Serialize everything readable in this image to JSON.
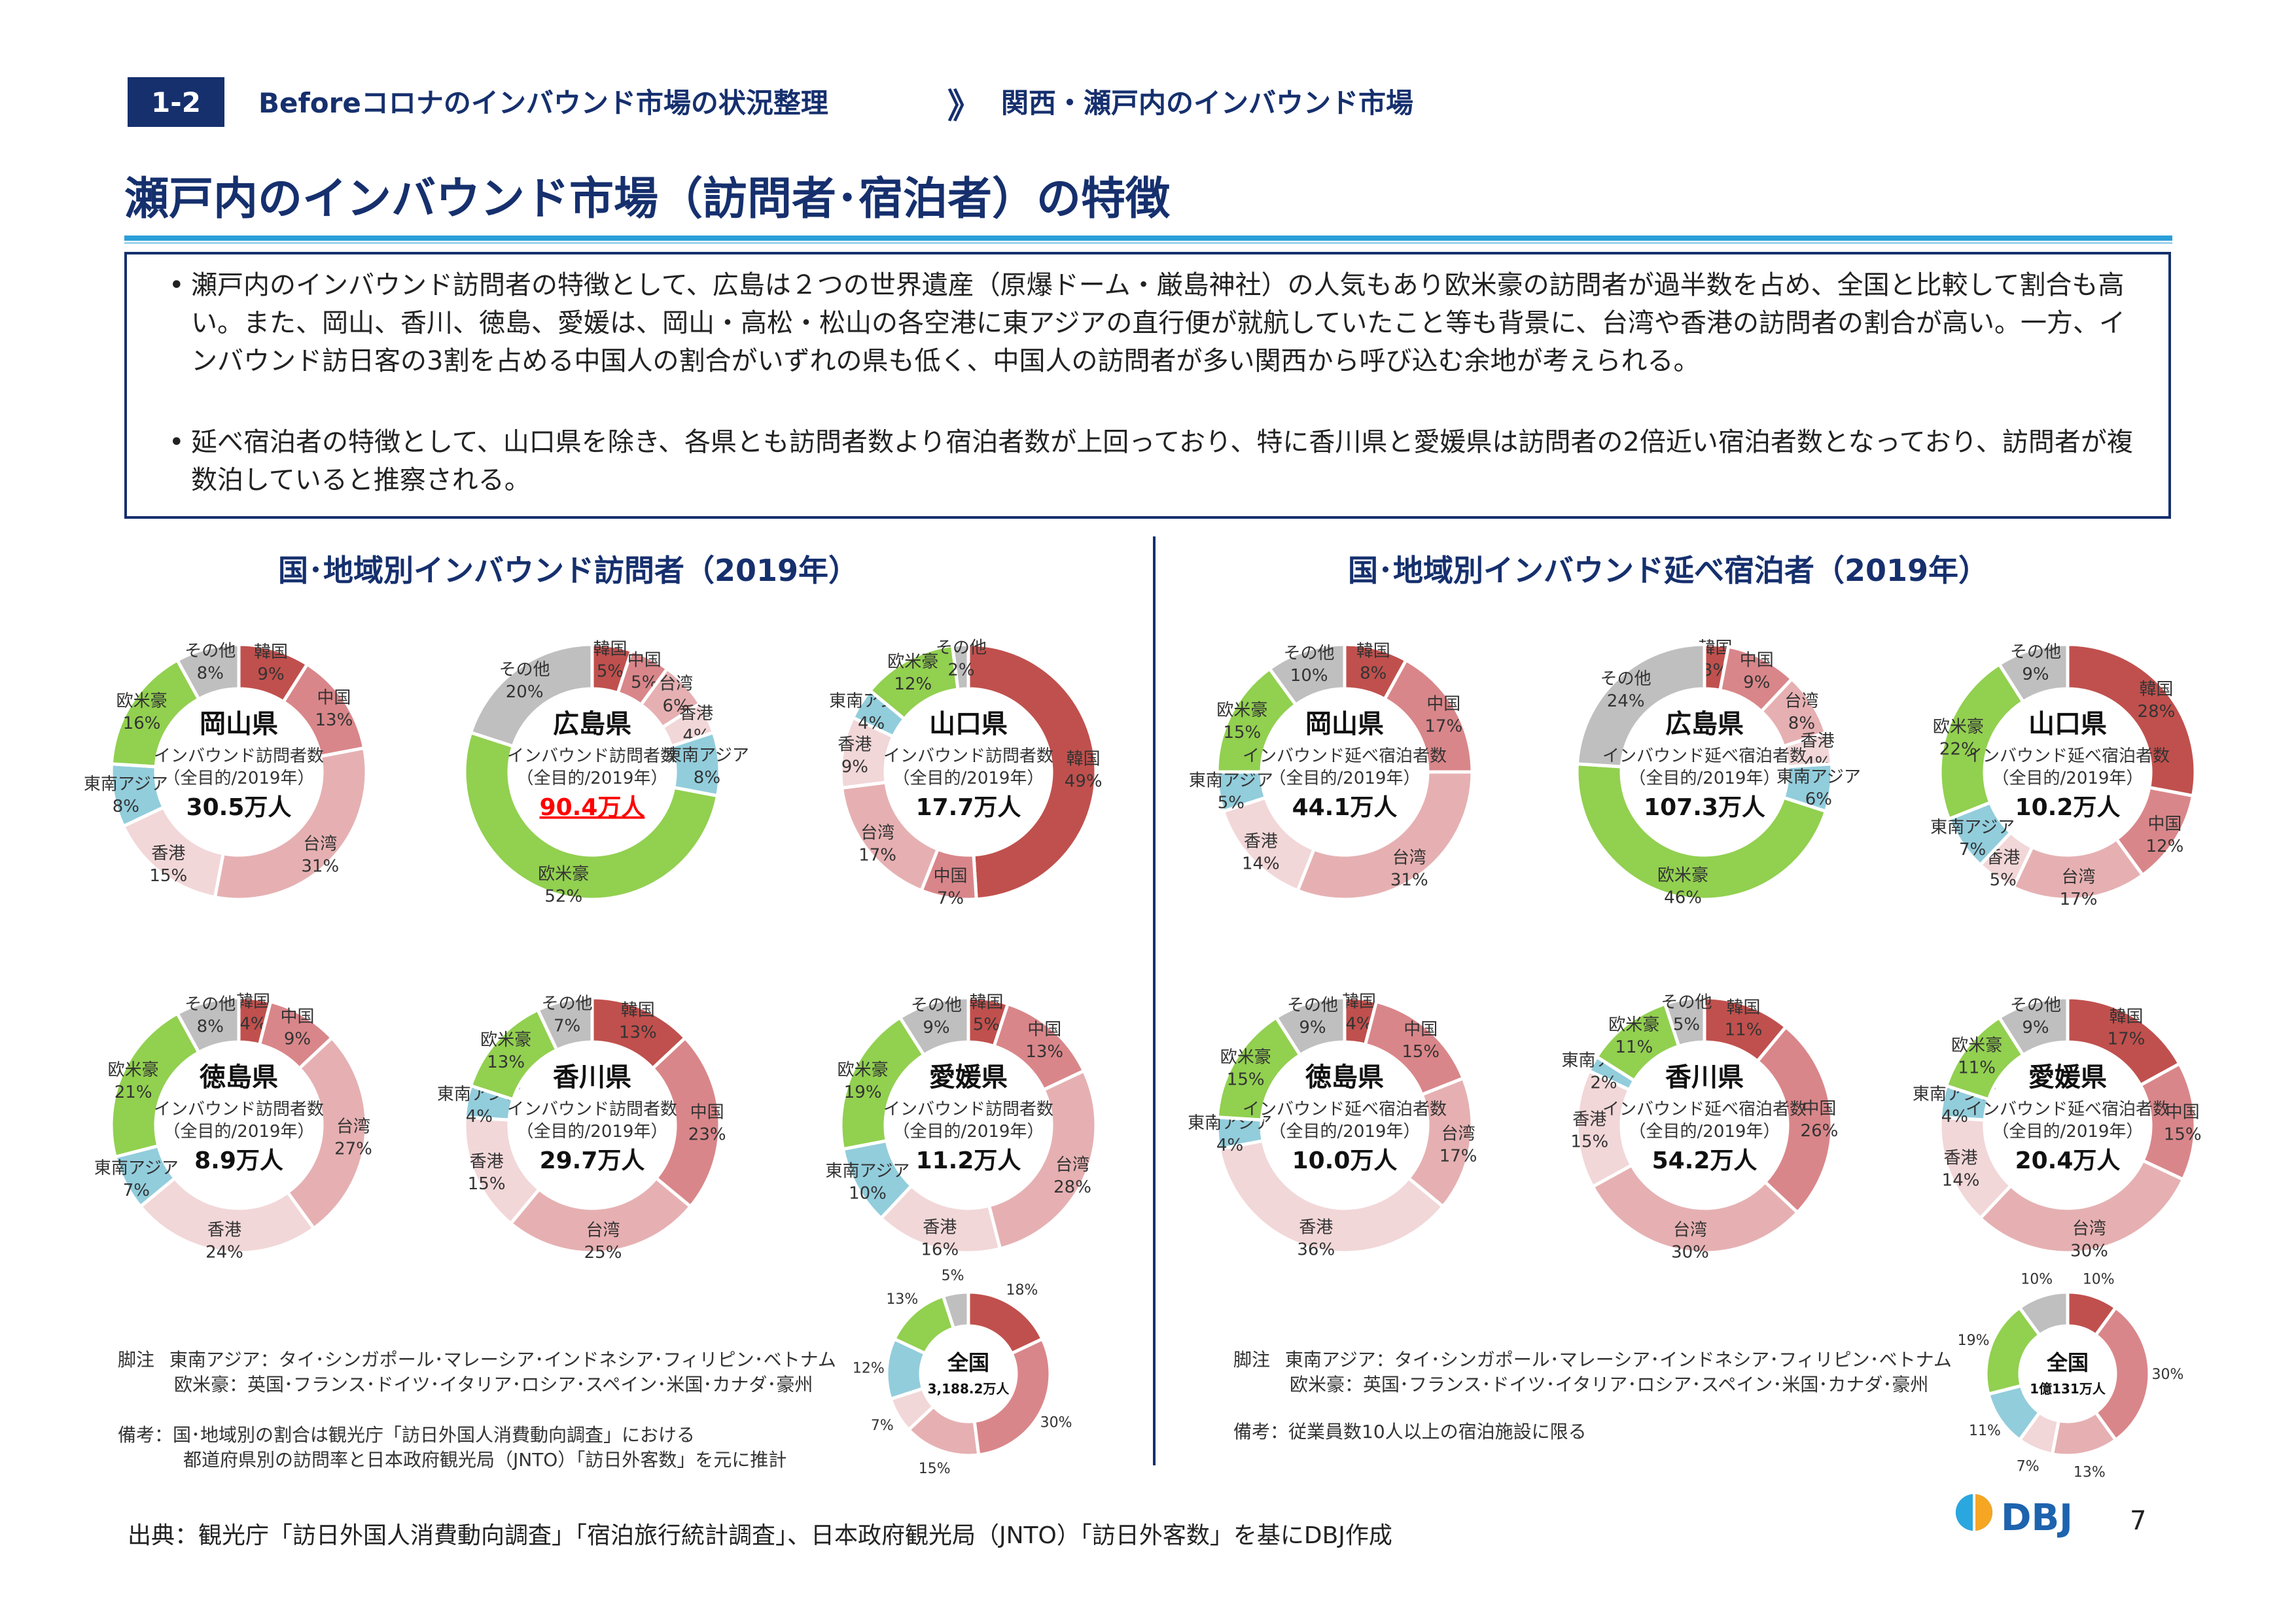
{
  "header": {
    "section_number": "1-2",
    "breadcrumb_main": "Beforeコロナのインバウンド市場の状況整理",
    "breadcrumb_arrow": "》",
    "breadcrumb_sub": "関西・瀬戸内のインバウンド市場"
  },
  "page_title": "瀬戸内のインバウンド市場（訪問者･宿泊者）の特徴",
  "summary": {
    "bullets": [
      "瀬戸内のインバウンド訪問者の特徴として、広島は２つの世界遺産（原爆ドーム・厳島神社）の人気もあり欧米豪の訪問者が過半数を占め、全国と比較して割合も高い。また、岡山、香川、徳島、愛媛は、岡山・高松・松山の各空港に東アジアの直行便が就航していたこと等も背景に、台湾や香港の訪問者の割合が高い。一方、インバウンド訪日客の3割を占める中国人の割合がいずれの県も低く、中国人の訪問者が多い関西から呼び込む余地が考えられる。",
      "延べ宿泊者の特徴として、山口県を除き、各県とも訪問者数より宿泊者数が上回っており、特に香川県と愛媛県は訪問者の2倍近い宿泊者数となっており、訪問者が複数泊していると推察される。"
    ],
    "bullet_symbol": "•"
  },
  "colors": {
    "韓国": "#c0504d",
    "中国": "#d9868a",
    "台湾": "#e6b0b2",
    "香港": "#f2d7d8",
    "東南アジア": "#92cddc",
    "欧米豪": "#92d050",
    "その他": "#bfbfbf",
    "highlight_red": "#ff0000"
  },
  "left_section": {
    "title": "国･地域別インバウンド訪問者（2019年）",
    "footnote_label": "脚注",
    "footnote_lines": [
      "東南アジア：タイ･シンガポール･マレーシア･インドネシア･フィリピン･ベトナム",
      "欧米豪：英国･フランス･ドイツ･イタリア･ロシア･スペイン･米国･カナダ･豪州"
    ],
    "remark_lines": [
      "備考：国･地域別の割合は観光庁「訪日外国人消費動向調査」における",
      "都道府県別の訪問率と日本政府観光局（JNTO）「訪日外客数」を元に推計"
    ]
  },
  "right_section": {
    "title": "国･地域別インバウンド延べ宿泊者（2019年）",
    "footnote_label": "脚注",
    "footnote_lines": [
      "東南アジア：タイ･シンガポール･マレーシア･インドネシア･フィリピン･ベトナム",
      "欧米豪：英国･フランス･ドイツ･イタリア･ロシア･スペイン･米国･カナダ･豪州"
    ],
    "remark_lines": [
      "備考：従業員数10人以上の宿泊施設に限る"
    ]
  },
  "chart_data": [
    {
      "type": "pie",
      "group": "visitors",
      "name": "岡山県",
      "sub1": "インバウンド訪問者数",
      "sub2": "（全目的/2019年）",
      "total": "30.5万人",
      "categories": [
        "韓国",
        "中国",
        "台湾",
        "香港",
        "東南アジア",
        "欧米豪",
        "その他"
      ],
      "values": [
        9,
        13,
        31,
        15,
        8,
        16,
        8
      ]
    },
    {
      "type": "pie",
      "group": "visitors",
      "name": "広島県",
      "sub1": "インバウンド訪問者数",
      "sub2": "（全目的/2019年）",
      "total": "90.4万人",
      "total_highlight": true,
      "categories": [
        "韓国",
        "中国",
        "台湾",
        "香港",
        "東南アジア",
        "欧米豪",
        "その他"
      ],
      "values": [
        5,
        5,
        6,
        4,
        8,
        52,
        20
      ]
    },
    {
      "type": "pie",
      "group": "visitors",
      "name": "山口県",
      "sub1": "インバウンド訪問者数",
      "sub2": "（全目的/2019年）",
      "total": "17.7万人",
      "categories": [
        "韓国",
        "中国",
        "台湾",
        "香港",
        "東南アジア",
        "欧米豪",
        "その他"
      ],
      "values": [
        49,
        7,
        17,
        9,
        4,
        12,
        2
      ]
    },
    {
      "type": "pie",
      "group": "visitors",
      "name": "徳島県",
      "sub1": "インバウンド訪問者数",
      "sub2": "（全目的/2019年）",
      "total": "8.9万人",
      "categories": [
        "韓国",
        "中国",
        "台湾",
        "香港",
        "東南アジア",
        "欧米豪",
        "その他"
      ],
      "values": [
        4,
        9,
        27,
        24,
        7,
        21,
        8
      ]
    },
    {
      "type": "pie",
      "group": "visitors",
      "name": "香川県",
      "sub1": "インバウンド訪問者数",
      "sub2": "（全目的/2019年）",
      "total": "29.7万人",
      "categories": [
        "韓国",
        "中国",
        "台湾",
        "香港",
        "東南アジア",
        "欧米豪",
        "その他"
      ],
      "values": [
        13,
        23,
        25,
        15,
        4,
        13,
        7
      ]
    },
    {
      "type": "pie",
      "group": "visitors",
      "name": "愛媛県",
      "sub1": "インバウンド訪問者数",
      "sub2": "（全目的/2019年）",
      "total": "11.2万人",
      "categories": [
        "韓国",
        "中国",
        "台湾",
        "香港",
        "東南アジア",
        "欧米豪",
        "その他"
      ],
      "values": [
        5,
        13,
        28,
        16,
        10,
        19,
        9
      ]
    },
    {
      "type": "pie",
      "group": "visitors",
      "name": "全国",
      "sub1": "",
      "sub2": "",
      "total": "3,188.2万人",
      "small": true,
      "categories": [
        "韓国",
        "中国",
        "台湾",
        "香港",
        "東南アジア",
        "欧米豪",
        "その他"
      ],
      "values": [
        18,
        30,
        15,
        7,
        12,
        13,
        5
      ]
    },
    {
      "type": "pie",
      "group": "stays",
      "name": "岡山県",
      "sub1": "インバウンド延べ宿泊者数",
      "sub2": "（全目的/2019年）",
      "total": "44.1万人",
      "categories": [
        "韓国",
        "中国",
        "台湾",
        "香港",
        "東南アジア",
        "欧米豪",
        "その他"
      ],
      "values": [
        8,
        17,
        31,
        14,
        5,
        15,
        10
      ]
    },
    {
      "type": "pie",
      "group": "stays",
      "name": "広島県",
      "sub1": "インバウンド延べ宿泊者数",
      "sub2": "（全目的/2019年）",
      "total": "107.3万人",
      "categories": [
        "韓国",
        "中国",
        "台湾",
        "香港",
        "東南アジア",
        "欧米豪",
        "その他"
      ],
      "values": [
        3,
        9,
        8,
        4,
        6,
        46,
        24
      ]
    },
    {
      "type": "pie",
      "group": "stays",
      "name": "山口県",
      "sub1": "インバウンド延べ宿泊者数",
      "sub2": "（全目的/2019年）",
      "total": "10.2万人",
      "categories": [
        "韓国",
        "中国",
        "台湾",
        "香港",
        "東南アジア",
        "欧米豪",
        "その他"
      ],
      "values": [
        28,
        12,
        17,
        5,
        7,
        22,
        9
      ]
    },
    {
      "type": "pie",
      "group": "stays",
      "name": "徳島県",
      "sub1": "インバウンド延べ宿泊者数",
      "sub2": "（全目的/2019年）",
      "total": "10.0万人",
      "categories": [
        "韓国",
        "中国",
        "台湾",
        "香港",
        "東南アジア",
        "欧米豪",
        "その他"
      ],
      "values": [
        4,
        15,
        17,
        36,
        4,
        15,
        9
      ]
    },
    {
      "type": "pie",
      "group": "stays",
      "name": "香川県",
      "sub1": "インバウンド延べ宿泊者数",
      "sub2": "（全目的/2019年）",
      "total": "54.2万人",
      "categories": [
        "韓国",
        "中国",
        "台湾",
        "香港",
        "東南アジア",
        "欧米豪",
        "その他"
      ],
      "values": [
        11,
        26,
        30,
        15,
        2,
        11,
        5
      ]
    },
    {
      "type": "pie",
      "group": "stays",
      "name": "愛媛県",
      "sub1": "インバウンド延べ宿泊者数",
      "sub2": "（全目的/2019年）",
      "total": "20.4万人",
      "categories": [
        "韓国",
        "中国",
        "台湾",
        "香港",
        "東南アジア",
        "欧米豪",
        "その他"
      ],
      "values": [
        17,
        15,
        30,
        14,
        4,
        11,
        9
      ]
    },
    {
      "type": "pie",
      "group": "stays",
      "name": "全国",
      "sub1": "",
      "sub2": "",
      "total": "1億131万人",
      "small": true,
      "categories": [
        "韓国",
        "中国",
        "台湾",
        "香港",
        "東南アジア",
        "欧米豪",
        "その他"
      ],
      "values": [
        10,
        30,
        13,
        7,
        11,
        19,
        10
      ]
    }
  ],
  "footer": {
    "source": "出典：観光庁「訪日外国人消費動向調査」「宿泊旅行統計調査」、日本政府観光局（JNTO）「訪日外客数」を基にDBJ作成",
    "logo_text": "DBJ",
    "page_number": "7"
  }
}
